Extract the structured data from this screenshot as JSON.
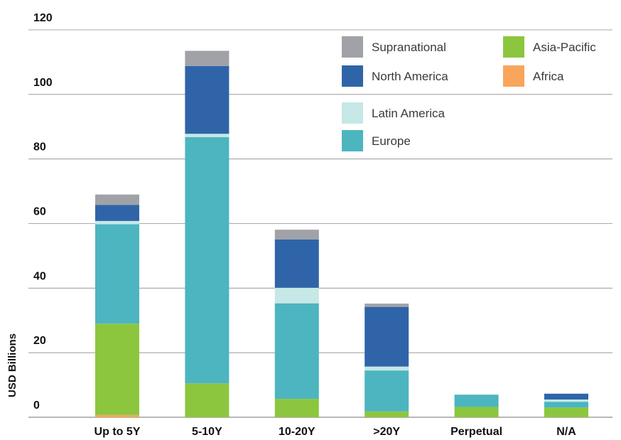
{
  "chart_data": {
    "type": "bar",
    "stacked": true,
    "title": "",
    "xlabel": "",
    "ylabel": "USD Billions",
    "ylim": [
      0,
      120
    ],
    "yticks": [
      0,
      20,
      40,
      60,
      80,
      100,
      120
    ],
    "grid": "horizontal",
    "legend_position": "top-right",
    "categories": [
      "Up to 5Y",
      "5-10Y",
      "10-20Y",
      ">20Y",
      "Perpetual",
      "N/A"
    ],
    "series": [
      {
        "name": "Africa",
        "color": "#f9a55b",
        "values": [
          0.7,
          0,
          0,
          0,
          0,
          0
        ]
      },
      {
        "name": "Asia-Pacific",
        "color": "#8cc63f",
        "values": [
          28.3,
          10.5,
          5.7,
          1.8,
          3.2,
          3.0
        ]
      },
      {
        "name": "Europe",
        "color": "#4cb5c0",
        "values": [
          30.8,
          76.3,
          29.6,
          12.7,
          3.8,
          1.8
        ]
      },
      {
        "name": "Latin America",
        "color": "#c6e8e6",
        "values": [
          1.0,
          1.0,
          4.8,
          1.2,
          0,
          0.7
        ]
      },
      {
        "name": "North America",
        "color": "#2f65a8",
        "values": [
          5.0,
          21.0,
          15.0,
          18.5,
          0,
          1.8
        ]
      },
      {
        "name": "Supranational",
        "color": "#a0a2a8",
        "values": [
          3.2,
          4.7,
          3.0,
          1.0,
          0,
          0
        ]
      }
    ],
    "legend_order": [
      "Supranational",
      "Asia-Pacific",
      "North America",
      "Africa",
      "Latin America",
      "Europe"
    ]
  }
}
